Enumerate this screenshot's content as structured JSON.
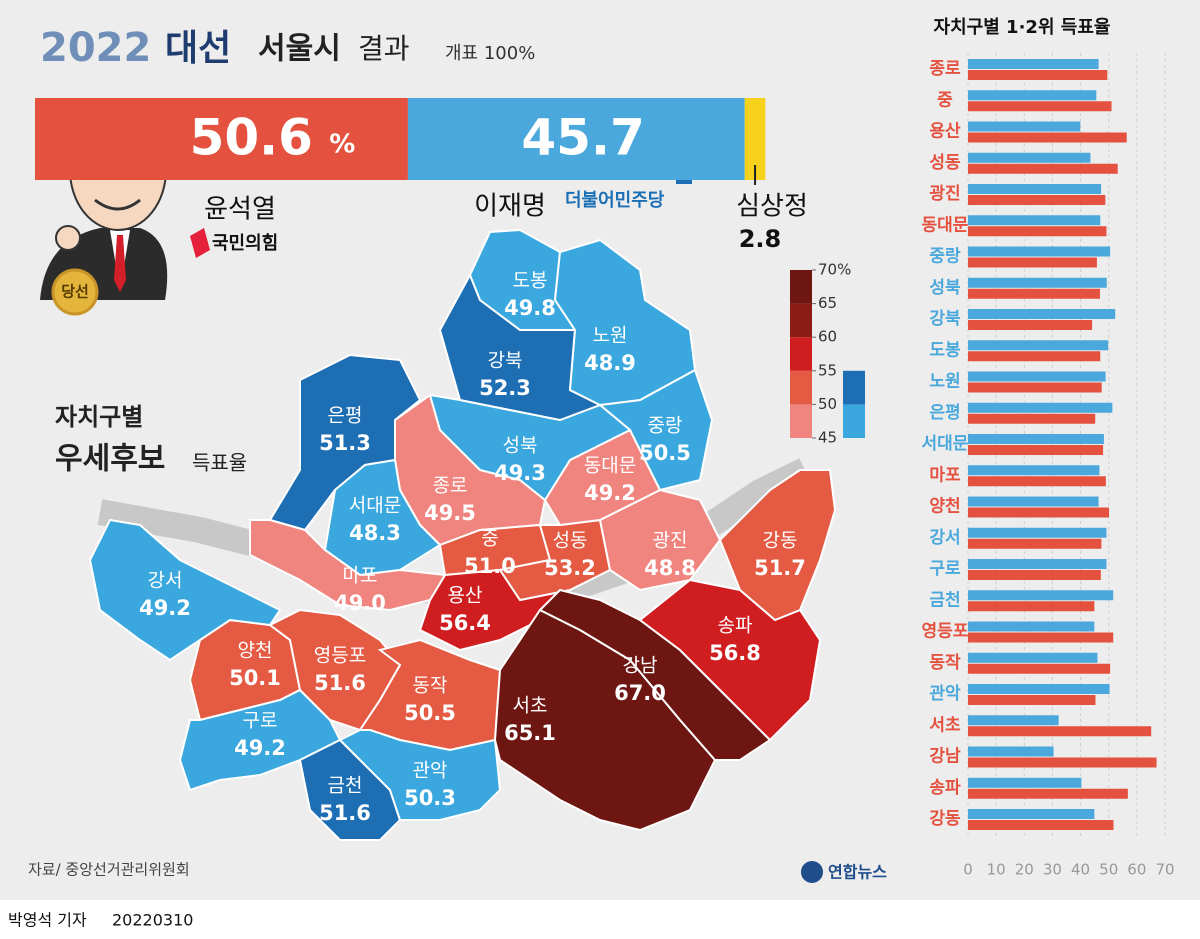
{
  "header": {
    "year": "2022",
    "election": "대선",
    "city": "서울시",
    "suffix": "결과",
    "count": "개표 100%"
  },
  "chart_data": [
    {
      "type": "stacked_bar",
      "categories": [
        "윤석열",
        "이재명",
        "심상정"
      ],
      "parties": [
        "국민의힘",
        "더불어민주당",
        null
      ],
      "values": [
        50.6,
        45.7,
        2.8
      ],
      "unit": "%",
      "colors": [
        "#e4523f",
        "#4aa8dc",
        "#f6d21c"
      ],
      "xlim": [
        0,
        100
      ],
      "winner_badge": "당선"
    },
    {
      "type": "hbar",
      "title": "자치구별 1·2위 득표율",
      "categories": [
        "종로",
        "중",
        "용산",
        "성동",
        "광진",
        "동대문",
        "중랑",
        "성북",
        "강북",
        "도봉",
        "노원",
        "은평",
        "서대문",
        "마포",
        "양천",
        "강서",
        "구로",
        "금천",
        "영등포",
        "동작",
        "관악",
        "서초",
        "강남",
        "송파",
        "강동"
      ],
      "series": [
        {
          "color": "#4aa8dc",
          "values": [
            46.4,
            45.6,
            39.9,
            43.5,
            47.3,
            47.0,
            50.5,
            49.3,
            52.3,
            49.8,
            48.9,
            51.3,
            48.3,
            46.7,
            46.4,
            49.2,
            49.2,
            51.6,
            44.9,
            46.0,
            50.3,
            32.2,
            30.4,
            40.3,
            44.9
          ]
        },
        {
          "color": "#e4523f",
          "values": [
            49.5,
            51.0,
            56.4,
            53.2,
            48.8,
            49.2,
            45.8,
            46.9,
            44.1,
            47.0,
            47.5,
            45.2,
            48.0,
            49.0,
            50.1,
            47.4,
            47.2,
            44.9,
            51.6,
            50.5,
            45.3,
            65.1,
            67.0,
            56.8,
            51.7
          ]
        }
      ],
      "xlim": [
        0,
        70
      ],
      "xticks": [
        0,
        10,
        20,
        30,
        40,
        50,
        60,
        70
      ],
      "grid": true
    }
  ],
  "map": {
    "title": "자치구별",
    "subtitle": "우세후보",
    "subtitle_suffix": "득표율",
    "districts": [
      {
        "name": "종로",
        "value": 49.5,
        "color": "#f08580"
      },
      {
        "name": "중",
        "value": 51.0,
        "value_label": "51.0",
        "color": "#e45a43"
      },
      {
        "name": "용산",
        "value": 56.4,
        "color": "#d01e20"
      },
      {
        "name": "성동",
        "value": 53.2,
        "color": "#e45a43"
      },
      {
        "name": "광진",
        "value": 48.8,
        "color": "#f08580"
      },
      {
        "name": "동대문",
        "value": 49.2,
        "color": "#f08580"
      },
      {
        "name": "중랑",
        "value": 50.5,
        "color": "#3aa8df"
      },
      {
        "name": "성북",
        "value": 49.3,
        "color": "#3aa8df"
      },
      {
        "name": "강북",
        "value": 52.3,
        "color": "#1e6eb4"
      },
      {
        "name": "도봉",
        "value": 49.8,
        "color": "#3aa8df"
      },
      {
        "name": "노원",
        "value": 48.9,
        "color": "#3aa8df"
      },
      {
        "name": "은평",
        "value": 51.3,
        "color": "#1e6eb4"
      },
      {
        "name": "서대문",
        "value": 48.3,
        "color": "#3aa8df"
      },
      {
        "name": "마포",
        "value": 49.0,
        "value_label": "49.0",
        "color": "#f08580"
      },
      {
        "name": "양천",
        "value": 50.1,
        "color": "#e45a43"
      },
      {
        "name": "강서",
        "value": 49.2,
        "color": "#3aa8df"
      },
      {
        "name": "구로",
        "value": 49.2,
        "color": "#3aa8df"
      },
      {
        "name": "금천",
        "value": 51.6,
        "color": "#1e6eb4"
      },
      {
        "name": "영등포",
        "value": 51.6,
        "color": "#e45a43"
      },
      {
        "name": "동작",
        "value": 50.5,
        "color": "#e45a43"
      },
      {
        "name": "관악",
        "value": 50.3,
        "color": "#3aa8df"
      },
      {
        "name": "서초",
        "value": 65.1,
        "color": "#6e1712"
      },
      {
        "name": "강남",
        "value": 67.0,
        "value_label": "67.0",
        "color": "#6e1712"
      },
      {
        "name": "송파",
        "value": 56.8,
        "color": "#d01e20"
      },
      {
        "name": "강동",
        "value": 51.7,
        "color": "#e45a43"
      }
    ],
    "legend": {
      "ylim": [
        45,
        70
      ],
      "ticks": [
        {
          "value": 70,
          "label": "70%"
        },
        65,
        60,
        55,
        50,
        45
      ],
      "red_colors": [
        "#f08580",
        "#e45a43",
        "#d01e20",
        "#8c1b14",
        "#6e1712"
      ],
      "blue_colors": [
        "#3aa8df",
        "#1e6eb4"
      ]
    }
  },
  "footer": {
    "source": "자료/ 중앙선거관리위원회",
    "agency": "연합뉴스",
    "reporter": "박영석 기자",
    "date": "20220310"
  }
}
